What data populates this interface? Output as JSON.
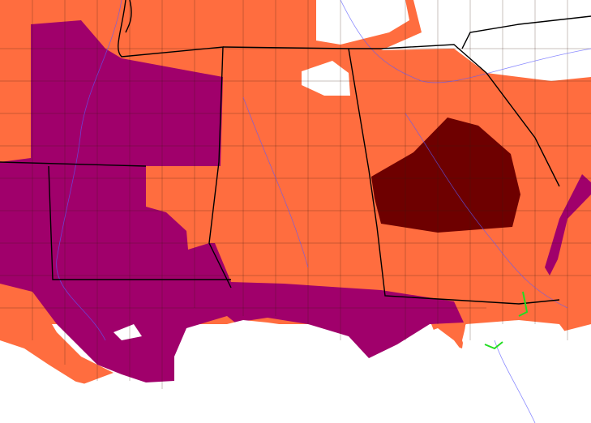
{
  "map": {
    "fill_colors": [
      "#ff6d3f",
      "#a0006b",
      "#6e0000",
      "#ffffff"
    ]
  }
}
